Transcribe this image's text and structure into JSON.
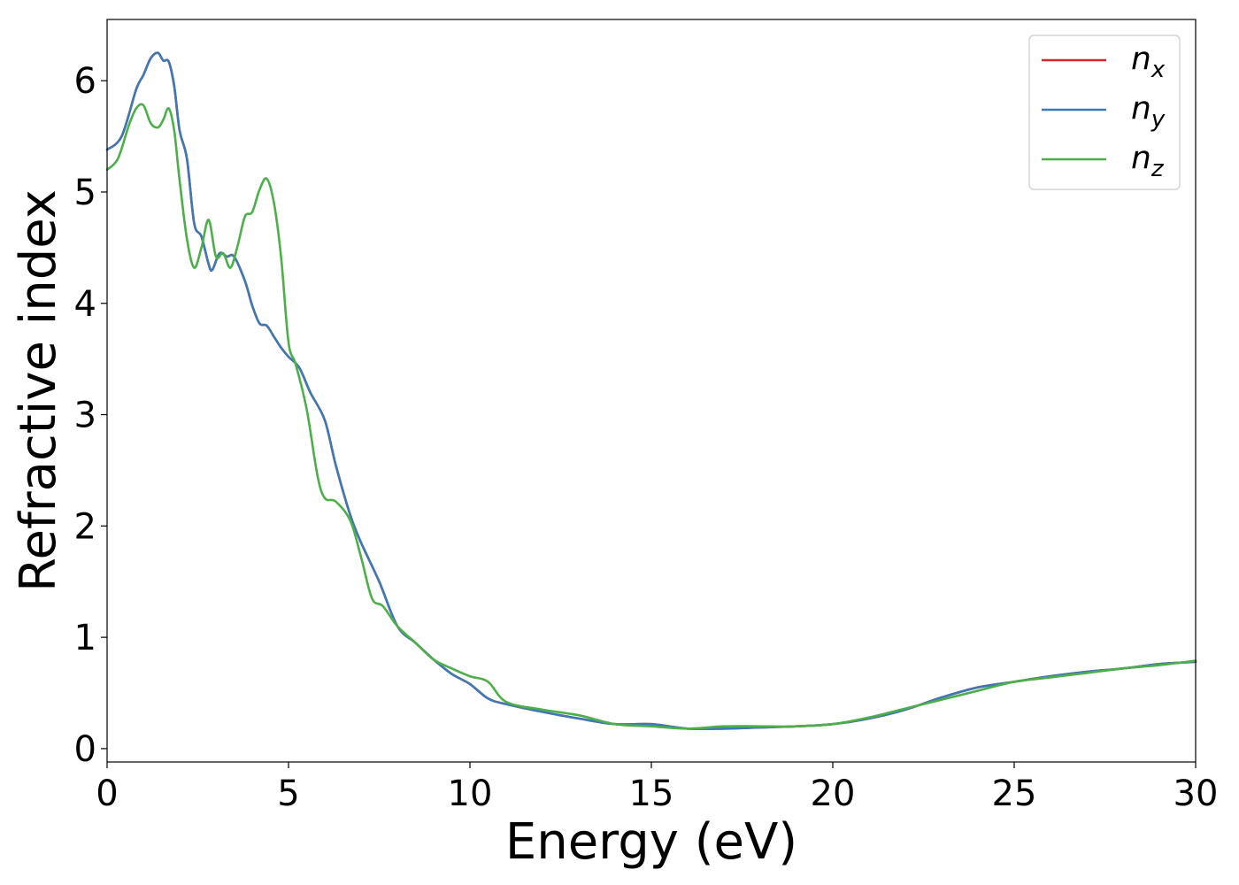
{
  "chart_data": {
    "type": "line",
    "xlabel": "Energy (eV)",
    "ylabel": "Refractive index",
    "xlim": [
      0,
      30
    ],
    "ylim": [
      -0.12,
      6.55
    ],
    "xticks": [
      0,
      5,
      10,
      15,
      20,
      25,
      30
    ],
    "yticks": [
      0,
      1,
      2,
      3,
      4,
      5,
      6
    ],
    "grid": false,
    "legend_position": "top-right",
    "series": [
      {
        "name": "n_x",
        "label_main": "n",
        "label_sub": "x",
        "color": "#d62728",
        "x": [
          0,
          0.4,
          0.8,
          1.0,
          1.2,
          1.4,
          1.55,
          1.7,
          1.85,
          2.0,
          2.2,
          2.4,
          2.6,
          2.8,
          2.9,
          3.1,
          3.3,
          3.5,
          3.8,
          4.0,
          4.2,
          4.4,
          4.6,
          4.8,
          5.0,
          5.3,
          5.6,
          6.0,
          6.3,
          6.7,
          7.0,
          7.5,
          8.0,
          8.5,
          9.0,
          9.5,
          10.0,
          10.5,
          11.0,
          12.0,
          13.0,
          14.0,
          15.0,
          16.0,
          17.0,
          18.0,
          19.0,
          20.0,
          21.0,
          22.0,
          23.0,
          24.0,
          25.0,
          26.0,
          27.0,
          28.0,
          29.0,
          30.0
        ],
        "y": [
          5.38,
          5.5,
          5.92,
          6.05,
          6.2,
          6.25,
          6.18,
          6.17,
          5.95,
          5.55,
          5.3,
          4.72,
          4.6,
          4.35,
          4.3,
          4.45,
          4.42,
          4.42,
          4.2,
          3.98,
          3.82,
          3.8,
          3.7,
          3.6,
          3.52,
          3.42,
          3.2,
          2.95,
          2.55,
          2.1,
          1.85,
          1.5,
          1.1,
          0.95,
          0.8,
          0.67,
          0.58,
          0.45,
          0.4,
          0.33,
          0.27,
          0.22,
          0.22,
          0.18,
          0.18,
          0.19,
          0.2,
          0.22,
          0.27,
          0.35,
          0.46,
          0.55,
          0.6,
          0.65,
          0.69,
          0.72,
          0.76,
          0.78
        ]
      },
      {
        "name": "n_y",
        "label_main": "n",
        "label_sub": "y",
        "color": "#3d7ab5",
        "x": [
          0,
          0.4,
          0.8,
          1.0,
          1.2,
          1.4,
          1.55,
          1.7,
          1.85,
          2.0,
          2.2,
          2.4,
          2.6,
          2.8,
          2.9,
          3.1,
          3.3,
          3.5,
          3.8,
          4.0,
          4.2,
          4.4,
          4.6,
          4.8,
          5.0,
          5.3,
          5.6,
          6.0,
          6.3,
          6.7,
          7.0,
          7.5,
          8.0,
          8.5,
          9.0,
          9.5,
          10.0,
          10.5,
          11.0,
          12.0,
          13.0,
          14.0,
          15.0,
          16.0,
          17.0,
          18.0,
          19.0,
          20.0,
          21.0,
          22.0,
          23.0,
          24.0,
          25.0,
          26.0,
          27.0,
          28.0,
          29.0,
          30.0
        ],
        "y": [
          5.38,
          5.5,
          5.92,
          6.05,
          6.2,
          6.25,
          6.18,
          6.17,
          5.95,
          5.55,
          5.3,
          4.72,
          4.6,
          4.35,
          4.3,
          4.45,
          4.42,
          4.42,
          4.2,
          3.98,
          3.82,
          3.8,
          3.7,
          3.6,
          3.52,
          3.42,
          3.2,
          2.95,
          2.55,
          2.1,
          1.85,
          1.5,
          1.1,
          0.95,
          0.8,
          0.67,
          0.58,
          0.45,
          0.4,
          0.33,
          0.27,
          0.22,
          0.22,
          0.18,
          0.18,
          0.19,
          0.2,
          0.22,
          0.27,
          0.35,
          0.46,
          0.55,
          0.6,
          0.65,
          0.69,
          0.72,
          0.76,
          0.78
        ]
      },
      {
        "name": "n_z",
        "label_main": "n",
        "label_sub": "z",
        "color": "#4daf4a",
        "x": [
          0,
          0.3,
          0.6,
          0.8,
          1.0,
          1.2,
          1.4,
          1.55,
          1.7,
          1.85,
          2.0,
          2.2,
          2.4,
          2.6,
          2.8,
          3.0,
          3.2,
          3.4,
          3.6,
          3.8,
          4.0,
          4.2,
          4.4,
          4.6,
          4.8,
          5.0,
          5.2,
          5.5,
          5.8,
          6.0,
          6.3,
          6.7,
          7.0,
          7.3,
          7.6,
          8.0,
          8.5,
          9.0,
          9.5,
          10.0,
          10.5,
          11.0,
          12.0,
          13.0,
          14.0,
          15.0,
          16.0,
          17.0,
          18.0,
          19.0,
          20.0,
          21.0,
          22.0,
          23.0,
          24.0,
          25.0,
          26.0,
          27.0,
          28.0,
          29.0,
          30.0
        ],
        "y": [
          5.2,
          5.3,
          5.6,
          5.75,
          5.78,
          5.62,
          5.58,
          5.65,
          5.75,
          5.55,
          5.1,
          4.58,
          4.32,
          4.5,
          4.75,
          4.42,
          4.45,
          4.32,
          4.52,
          4.78,
          4.82,
          5.02,
          5.12,
          4.9,
          4.4,
          3.65,
          3.45,
          3.05,
          2.45,
          2.25,
          2.22,
          2.05,
          1.72,
          1.35,
          1.28,
          1.1,
          0.95,
          0.8,
          0.72,
          0.65,
          0.6,
          0.42,
          0.35,
          0.3,
          0.22,
          0.2,
          0.18,
          0.2,
          0.2,
          0.2,
          0.22,
          0.28,
          0.36,
          0.44,
          0.52,
          0.6,
          0.64,
          0.68,
          0.72,
          0.75,
          0.79
        ]
      }
    ]
  }
}
